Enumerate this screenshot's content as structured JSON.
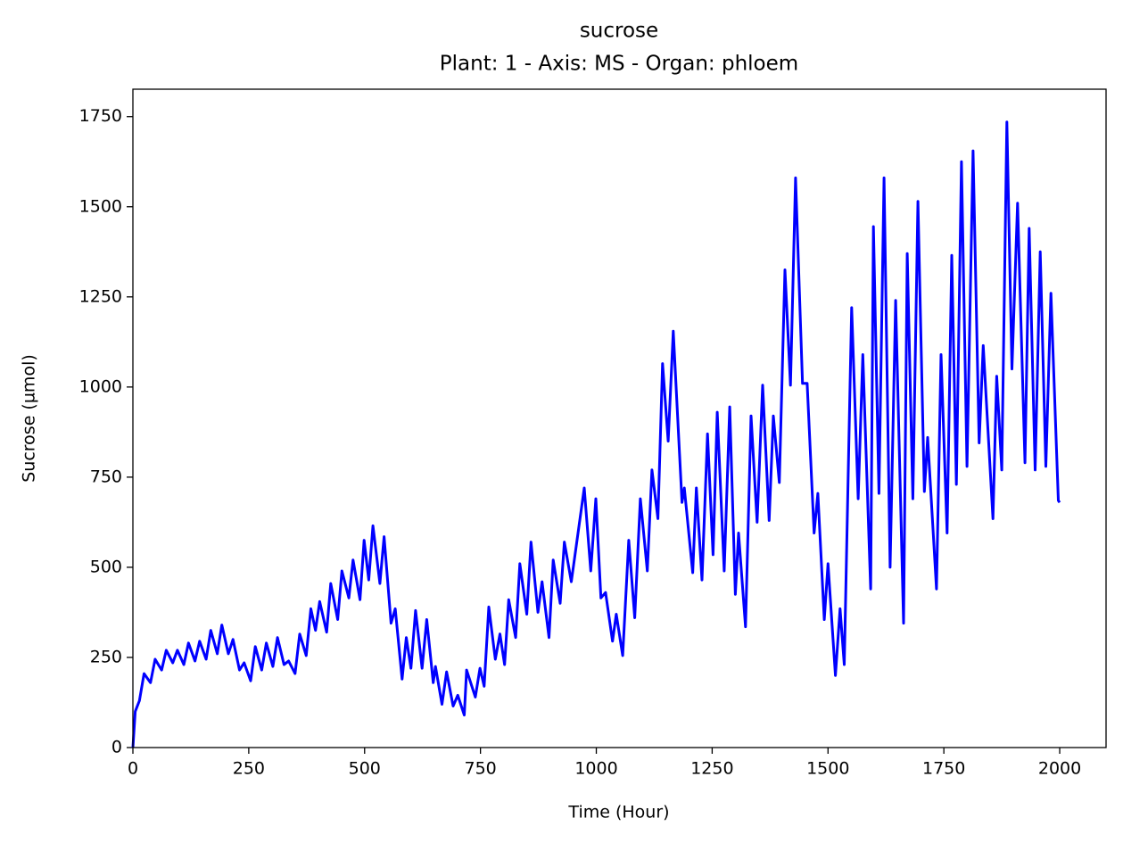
{
  "chart_data": {
    "type": "line",
    "title": "sucrose",
    "subtitle": "Plant: 1 - Axis: MS - Organ: phloem",
    "x_label": "Time (Hour)",
    "y_label": "Sucrose (µmol)",
    "color": "#0000ff",
    "xlim": [
      0,
      2100
    ],
    "ylim": [
      0,
      1826
    ],
    "xticks": [
      0,
      250,
      500,
      750,
      1000,
      1250,
      1500,
      1750,
      2000
    ],
    "yticks": [
      0,
      250,
      500,
      750,
      1000,
      1250,
      1500,
      1750
    ],
    "x": [
      0,
      5,
      14,
      24,
      38,
      48,
      62,
      72,
      86,
      96,
      110,
      120,
      134,
      144,
      158,
      168,
      182,
      192,
      206,
      216,
      230,
      240,
      254,
      264,
      278,
      288,
      302,
      312,
      326,
      336,
      350,
      360,
      374,
      384,
      394,
      403,
      418,
      427,
      442,
      451,
      466,
      475,
      490,
      499,
      509,
      518,
      533,
      542,
      557,
      566,
      581,
      590,
      600,
      610,
      624,
      634,
      648,
      653,
      667,
      677,
      691,
      701,
      715,
      720,
      739,
      749,
      758,
      768,
      782,
      792,
      802,
      811,
      826,
      835,
      850,
      859,
      874,
      883,
      898,
      907,
      922,
      931,
      946,
      974,
      988,
      999,
      1010,
      1020,
      1035,
      1043,
      1057,
      1070,
      1083,
      1095,
      1110,
      1120,
      1133,
      1143,
      1155,
      1166,
      1185,
      1190,
      1208,
      1216,
      1228,
      1240,
      1252,
      1261,
      1276,
      1288,
      1300,
      1307,
      1322,
      1334,
      1347,
      1359,
      1373,
      1382,
      1395,
      1407,
      1419,
      1430,
      1445,
      1455,
      1470,
      1478,
      1492,
      1500,
      1516,
      1526,
      1535,
      1551,
      1565,
      1575,
      1592,
      1598,
      1610,
      1621,
      1634,
      1646,
      1663,
      1671,
      1683,
      1694,
      1708,
      1715,
      1734,
      1744,
      1757,
      1767,
      1777,
      1788,
      1800,
      1813,
      1826,
      1835,
      1856,
      1864,
      1875,
      1886,
      1897,
      1909,
      1925,
      1934,
      1947,
      1958,
      1970,
      1981,
      1997,
      2000
    ],
    "values": [
      0,
      100,
      130,
      205,
      180,
      245,
      215,
      270,
      235,
      270,
      230,
      290,
      240,
      295,
      245,
      325,
      260,
      340,
      260,
      300,
      215,
      235,
      185,
      280,
      215,
      290,
      225,
      305,
      230,
      240,
      205,
      315,
      255,
      385,
      325,
      405,
      320,
      455,
      355,
      490,
      415,
      520,
      410,
      575,
      465,
      615,
      455,
      585,
      345,
      385,
      190,
      305,
      220,
      380,
      220,
      355,
      180,
      225,
      120,
      210,
      115,
      145,
      90,
      215,
      140,
      220,
      170,
      390,
      245,
      315,
      230,
      410,
      305,
      510,
      370,
      570,
      375,
      460,
      305,
      520,
      400,
      570,
      460,
      720,
      490,
      690,
      415,
      430,
      295,
      370,
      255,
      575,
      360,
      690,
      490,
      770,
      635,
      1065,
      850,
      1155,
      680,
      720,
      485,
      720,
      465,
      870,
      535,
      930,
      490,
      945,
      425,
      595,
      335,
      920,
      625,
      1005,
      630,
      920,
      735,
      1325,
      1005,
      1580,
      1010,
      1010,
      595,
      705,
      355,
      510,
      200,
      385,
      230,
      1220,
      690,
      1090,
      440,
      1445,
      705,
      1580,
      500,
      1240,
      345,
      1370,
      690,
      1515,
      710,
      860,
      440,
      1090,
      595,
      1365,
      730,
      1625,
      780,
      1655,
      845,
      1115,
      635,
      1030,
      770,
      1735,
      1050,
      1510,
      790,
      1440,
      770,
      1375,
      780,
      1260,
      685,
      680
    ]
  }
}
